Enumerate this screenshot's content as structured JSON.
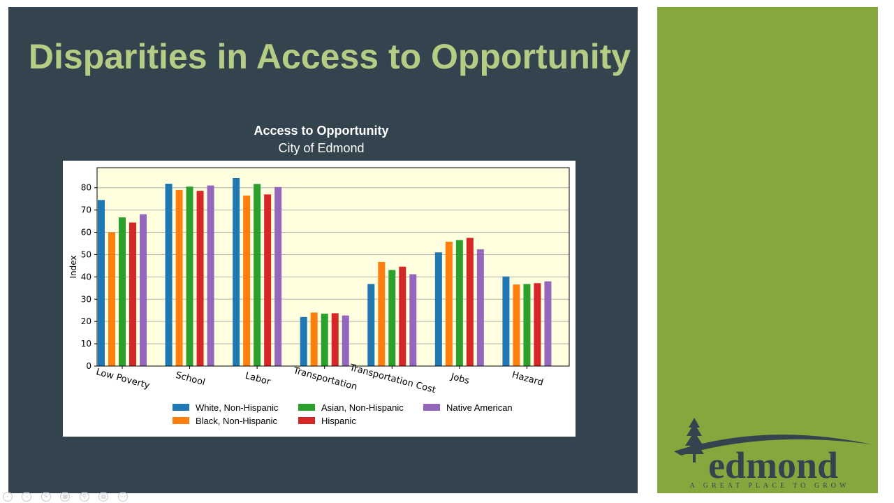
{
  "slide": {
    "title": "Disparities in Access to Opportunity",
    "logo_word": "edmond",
    "logo_tagline": "A GREAT PLACE TO GROW",
    "background": "#34444f",
    "title_color": "#b5cc85",
    "side_panel_color": "#84a83d"
  },
  "chart_data": {
    "type": "bar",
    "title": "Access to Opportunity",
    "subtitle": "City of Edmond",
    "xlabel": "",
    "ylabel": "Index",
    "ylim": [
      0,
      89
    ],
    "yticks": [
      0,
      10,
      20,
      30,
      40,
      50,
      60,
      70,
      80
    ],
    "grid": true,
    "legend_position": "bottom",
    "plot_background": "#ffffe0",
    "categories": [
      "Low Poverty",
      "School",
      "Labor",
      "Transportation",
      "Transportation Cost",
      "Jobs",
      "Hazard"
    ],
    "series": [
      {
        "name": "White, Non-Hispanic",
        "color": "#1f77b4",
        "values": [
          74.5,
          81.8,
          84.3,
          22,
          36.8,
          51,
          40.2
        ]
      },
      {
        "name": "Black, Non-Hispanic",
        "color": "#ff7f0e",
        "values": [
          60,
          79,
          76.5,
          24,
          46.7,
          55.8,
          36.6
        ]
      },
      {
        "name": "Asian, Non-Hispanic",
        "color": "#2ca02c",
        "values": [
          66.7,
          80.5,
          81.7,
          23.5,
          43.1,
          56.5,
          36.8
        ]
      },
      {
        "name": "Hispanic",
        "color": "#d62728",
        "values": [
          64.4,
          78.6,
          77,
          23.7,
          44.6,
          57.5,
          37.2
        ]
      },
      {
        "name": "Native American",
        "color": "#9467bd",
        "values": [
          68.1,
          81,
          80.3,
          22.7,
          41.2,
          52.4,
          38
        ]
      }
    ]
  }
}
